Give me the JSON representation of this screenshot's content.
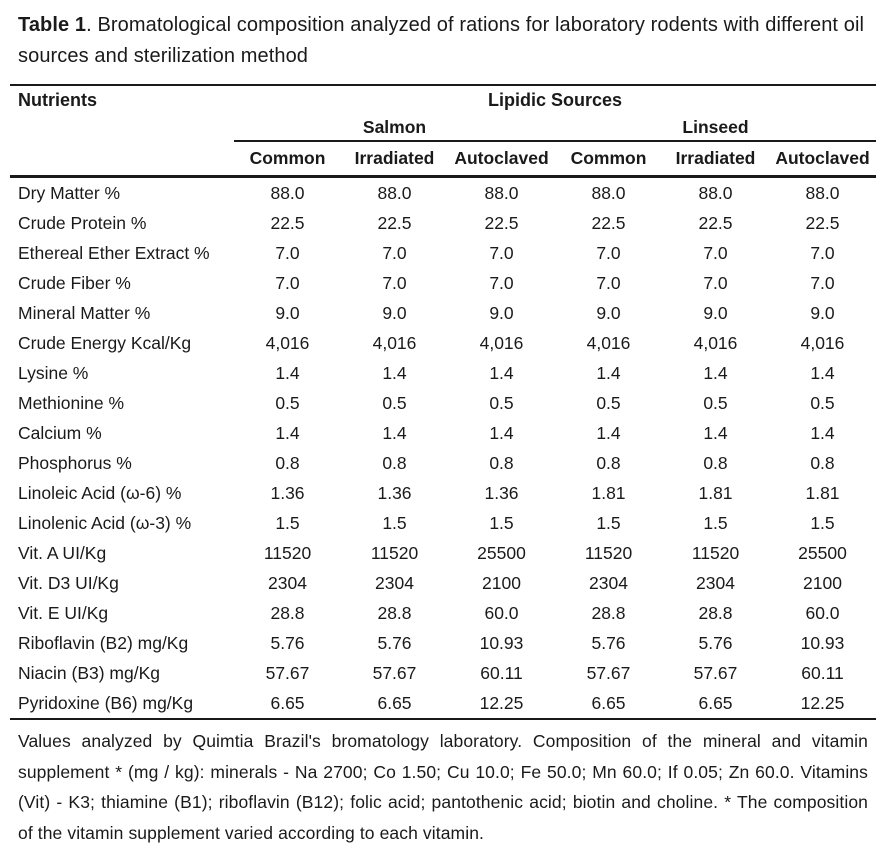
{
  "title": {
    "bold": "Table 1",
    "rest": ". Bromatological composition analyzed of rations for laboratory rodents with different oil sources and sterilization method"
  },
  "table": {
    "nutrients_header": "Nutrients",
    "lipidic_header": "Lipidic Sources",
    "groups": [
      {
        "label": "Salmon"
      },
      {
        "label": "Linseed"
      }
    ],
    "subheaders": [
      "Common",
      "Irradiated",
      "Autoclaved",
      "Common",
      "Irradiated",
      "Autoclaved"
    ],
    "rows": [
      {
        "nutrient": "Dry Matter %",
        "values": [
          "88.0",
          "88.0",
          "88.0",
          "88.0",
          "88.0",
          "88.0"
        ]
      },
      {
        "nutrient": "Crude Protein %",
        "values": [
          "22.5",
          "22.5",
          "22.5",
          "22.5",
          "22.5",
          "22.5"
        ]
      },
      {
        "nutrient": "Ethereal Ether Extract %",
        "values": [
          "7.0",
          "7.0",
          "7.0",
          "7.0",
          "7.0",
          "7.0"
        ]
      },
      {
        "nutrient": "Crude Fiber %",
        "values": [
          "7.0",
          "7.0",
          "7.0",
          "7.0",
          "7.0",
          "7.0"
        ]
      },
      {
        "nutrient": "Mineral Matter %",
        "values": [
          "9.0",
          "9.0",
          "9.0",
          "9.0",
          "9.0",
          "9.0"
        ]
      },
      {
        "nutrient": "Crude Energy Kcal/Kg",
        "values": [
          "4,016",
          "4,016",
          "4,016",
          "4,016",
          "4,016",
          "4,016"
        ]
      },
      {
        "nutrient": "Lysine %",
        "values": [
          "1.4",
          "1.4",
          "1.4",
          "1.4",
          "1.4",
          "1.4"
        ]
      },
      {
        "nutrient": "Methionine %",
        "values": [
          "0.5",
          "0.5",
          "0.5",
          "0.5",
          "0.5",
          "0.5"
        ]
      },
      {
        "nutrient": "Calcium %",
        "values": [
          "1.4",
          "1.4",
          "1.4",
          "1.4",
          "1.4",
          "1.4"
        ]
      },
      {
        "nutrient": "Phosphorus %",
        "values": [
          "0.8",
          "0.8",
          "0.8",
          "0.8",
          "0.8",
          "0.8"
        ]
      },
      {
        "nutrient": "Linoleic Acid (ω-6) %",
        "values": [
          "1.36",
          "1.36",
          "1.36",
          "1.81",
          "1.81",
          "1.81"
        ]
      },
      {
        "nutrient": "Linolenic Acid (ω-3) %",
        "values": [
          "1.5",
          "1.5",
          "1.5",
          "1.5",
          "1.5",
          "1.5"
        ]
      },
      {
        "nutrient": "Vit. A UI/Kg",
        "values": [
          "11520",
          "11520",
          "25500",
          "11520",
          "11520",
          "25500"
        ]
      },
      {
        "nutrient": "Vit. D3 UI/Kg",
        "values": [
          "2304",
          "2304",
          "2100",
          "2304",
          "2304",
          "2100"
        ]
      },
      {
        "nutrient": "Vit. E UI/Kg",
        "values": [
          "28.8",
          "28.8",
          "60.0",
          "28.8",
          "28.8",
          "60.0"
        ]
      },
      {
        "nutrient": "Riboflavin (B2) mg/Kg",
        "values": [
          "5.76",
          "5.76",
          "10.93",
          "5.76",
          "5.76",
          "10.93"
        ]
      },
      {
        "nutrient": "Niacin (B3) mg/Kg",
        "values": [
          "57.67",
          "57.67",
          "60.11",
          "57.67",
          "57.67",
          "60.11"
        ]
      },
      {
        "nutrient": "Pyridoxine (B6) mg/Kg",
        "values": [
          "6.65",
          "6.65",
          "12.25",
          "6.65",
          "6.65",
          "12.25"
        ]
      }
    ]
  },
  "footnote": "Values analyzed by Quimtia Brazil's bromatology laboratory. Composition of the mineral and vitamin supplement * (mg / kg): minerals - Na 2700; Co 1.50; Cu 10.0; Fe 50.0; Mn 60.0; If 0.05; Zn 60.0. Vitamins (Vit) - K3; thiamine (B1); riboflavin (B12); folic acid; pantothenic acid; biotin and choline. * The composition of the vitamin supplement varied according to each vitamin."
}
